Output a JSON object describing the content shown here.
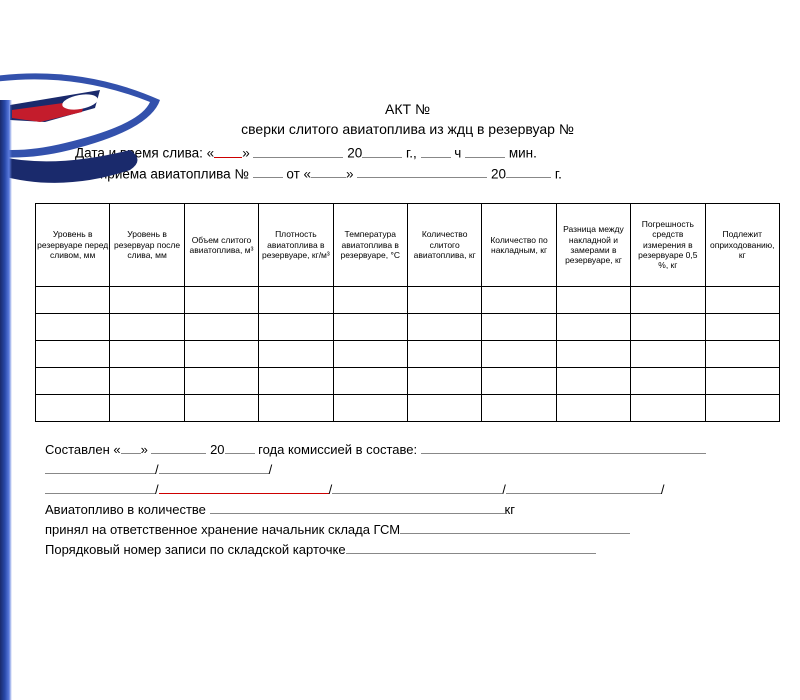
{
  "title": {
    "line1": "АКТ №",
    "line2": "сверки слитого авиатоплива из ждц в резервуар №"
  },
  "meta": {
    "line1_prefix": "Дата и время слива: «",
    "line1_mid1": "» ",
    "line1_mid2": " 20",
    "line1_mid3": " г., ",
    "line1_mid4": " ч ",
    "line1_suffix": " мин.",
    "line2_prefix": "Акт приема авиатоплива № ",
    "line2_mid1": " от «",
    "line2_mid2": "» ",
    "line2_mid3": " 20",
    "line2_suffix": " г."
  },
  "columns": [
    "Уровень в резервуаре перед сливом, мм",
    "Уровень в резервуар после слива, мм",
    "Объем слитого авиатоплива, м³",
    "Плотность авиатоплива в резервуаре, кг/м³",
    "Температура авиатоплива в резервуаре, °С",
    "Количество слитого авиатоплива, кг",
    "Количество по накладным, кг",
    "Разница между накладной и замерами в резервуаре, кг",
    "Погрешность средств измерения в резервуаре 0,5 %, кг",
    "Подлежит оприходованию, кг"
  ],
  "empty_rows": 5,
  "footer": {
    "line1_a": "Составлен «",
    "line1_b": "» ",
    "line1_c": " 20",
    "line1_d": " года комиссией в составе: ",
    "line3_a": "Авиатопливо в количестве ",
    "line3_b": "кг",
    "line4_a": "принял на ответственное хранение начальник склада ГСМ",
    "line5_a": "Порядковый номер записи по складской карточке"
  },
  "logo_colors": {
    "navy": "#1a2a6c",
    "blue": "#2848a8",
    "red": "#c41c2c",
    "white": "#ffffff"
  }
}
